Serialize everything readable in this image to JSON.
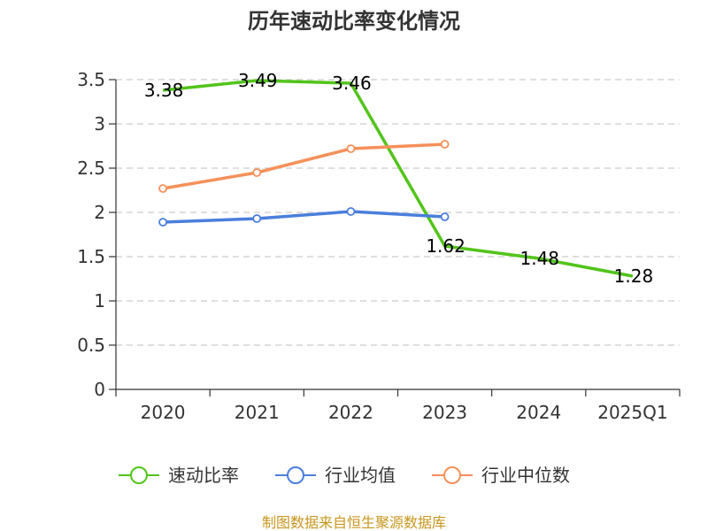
{
  "chart_data": {
    "type": "line",
    "title": "历年速动比率变化情况",
    "categories": [
      "2020",
      "2021",
      "2022",
      "2023",
      "2024",
      "2025Q1"
    ],
    "ylim": [
      0,
      3.5
    ],
    "yticks": [
      "0",
      "0.5",
      "1",
      "1.5",
      "2",
      "2.5",
      "3",
      "3.5"
    ],
    "ytick_values": [
      0,
      0.5,
      1,
      1.5,
      2,
      2.5,
      3,
      3.5
    ],
    "grid": true,
    "legend_position": "bottom",
    "series": [
      {
        "name": "速动比率",
        "color": "#52c41a",
        "values": [
          3.38,
          3.49,
          3.46,
          1.62,
          1.48,
          1.28
        ],
        "labels": [
          "3.38",
          "3.49",
          "3.46",
          "1.62",
          "1.48",
          "1.28"
        ],
        "show_markers": false,
        "show_labels": true
      },
      {
        "name": "行业均值",
        "color": "#4a7fdc",
        "values": [
          1.89,
          1.93,
          2.01,
          1.95,
          null,
          null
        ],
        "show_markers": true,
        "show_labels": false
      },
      {
        "name": "行业中位数",
        "color": "#f5905a",
        "values": [
          2.27,
          2.45,
          2.72,
          2.77,
          null,
          null
        ],
        "show_markers": true,
        "show_labels": false
      }
    ]
  },
  "source_text": "制图数据来自恒生聚源数据库",
  "source_color": "#c8961e"
}
